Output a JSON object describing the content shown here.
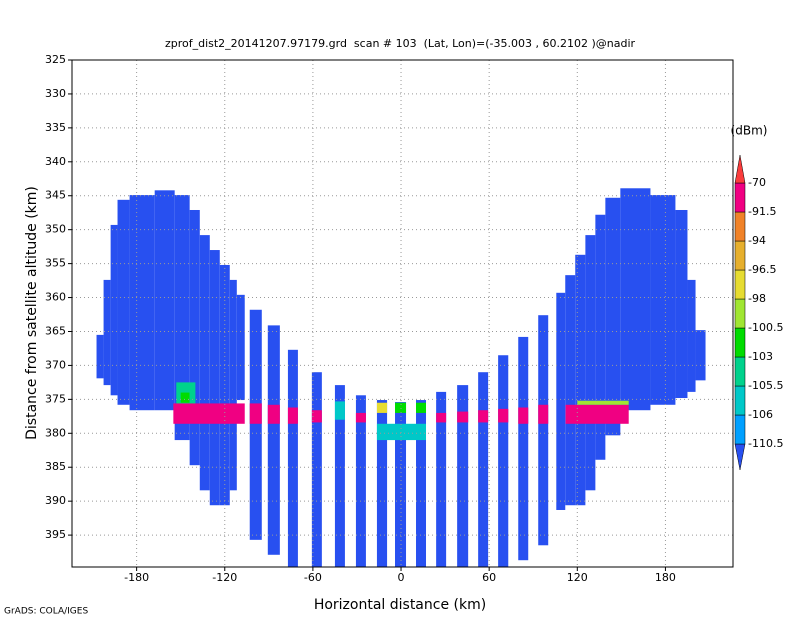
{
  "chart_data": {
    "type": "shaded",
    "title": "zprof_dist2_20141207.97179.grd  scan # 103  (Lat, Lon)=(-35.003 , 60.2102 )@nadir",
    "x_label": "Horizontal distance (km)",
    "y_label": "Distance from satellite altitude (km)",
    "footer": "GrADS: COLA/IGES",
    "xlim": [
      -224,
      226
    ],
    "ylim": [
      325,
      399.7
    ],
    "xticks": [
      -180,
      -120,
      -60,
      0,
      60,
      120,
      180
    ],
    "yticks": [
      325,
      330,
      335,
      340,
      345,
      350,
      355,
      360,
      365,
      370,
      375,
      380,
      385,
      390,
      395
    ],
    "grid": true,
    "colorbar": {
      "unit": "(dBm)",
      "levels": [
        -110.5,
        -106,
        -105.5,
        -103,
        -100.5,
        -98,
        -96.5,
        -94,
        -91.5,
        -70
      ],
      "colors": [
        "#2850f0",
        "#00a0ff",
        "#00c8c8",
        "#00d28c",
        "#00dc00",
        "#a0e632",
        "#e6dc32",
        "#e6af2d",
        "#f08228",
        "#f00082",
        "#fa3c3c"
      ]
    },
    "patches": [
      {
        "x": [
          -207.3,
          -202.5
        ],
        "alt": [
          365.5,
          371.9
        ],
        "value": -115
      },
      {
        "x": [
          -202.5,
          -197.7
        ],
        "alt": [
          357.4,
          372.9
        ],
        "value": -115
      },
      {
        "x": [
          -197.7,
          -193
        ],
        "alt": [
          349.3,
          374.4
        ],
        "value": -115
      },
      {
        "x": [
          -193,
          -184.8
        ],
        "alt": [
          345.6,
          375.8
        ],
        "value": -115
      },
      {
        "x": [
          -184.8,
          -167.7
        ],
        "alt": [
          344.9,
          376.6
        ],
        "value": -115
      },
      {
        "x": [
          -167.7,
          -154.1
        ],
        "alt": [
          344.2,
          376.6
        ],
        "value": -115
      },
      {
        "x": [
          -154.1,
          -143.9
        ],
        "alt": [
          344.9,
          381
        ],
        "value": -115
      },
      {
        "x": [
          -143.9,
          -137
        ],
        "alt": [
          347.1,
          384.7
        ],
        "value": -115
      },
      {
        "x": [
          -137,
          -130.2
        ],
        "alt": [
          350.8,
          388.4
        ],
        "value": -115
      },
      {
        "x": [
          -130.2,
          -123.4
        ],
        "alt": [
          353,
          390.6
        ],
        "value": -115
      },
      {
        "x": [
          -123.4,
          -116.6
        ],
        "alt": [
          355.2,
          390.6
        ],
        "value": -115
      },
      {
        "x": [
          -116.6,
          -111.8
        ],
        "alt": [
          357.4,
          388.4
        ],
        "value": -115
      },
      {
        "x": [
          -111.8,
          -106.4
        ],
        "alt": [
          359.6,
          375.1
        ],
        "value": -115
      },
      {
        "x": [
          -103,
          -94.8
        ],
        "alt": [
          361.8,
          395.7
        ],
        "value": -115
      },
      {
        "x": [
          -90.7,
          -82.5
        ],
        "alt": [
          364.1,
          397.9
        ],
        "value": -115
      },
      {
        "x": [
          -77,
          -70.2
        ],
        "alt": [
          367.7,
          399.7
        ],
        "value": -115
      },
      {
        "x": [
          -60.7,
          -53.9
        ],
        "alt": [
          371,
          399.7
        ],
        "value": -115
      },
      {
        "x": [
          -45,
          -38.2
        ],
        "alt": [
          372.9,
          399.7
        ],
        "value": -115
      },
      {
        "x": [
          -30.7,
          -23.9
        ],
        "alt": [
          374.4,
          399.7
        ],
        "value": -115
      },
      {
        "x": [
          -16.4,
          -9.5
        ],
        "alt": [
          375.1,
          399.7
        ],
        "value": -115
      },
      {
        "x": [
          -4.1,
          3.4
        ],
        "alt": [
          375.4,
          399.7
        ],
        "value": -115
      },
      {
        "x": [
          10.2,
          17
        ],
        "alt": [
          375.1,
          399.7
        ],
        "value": -115
      },
      {
        "x": [
          23.9,
          30.7
        ],
        "alt": [
          373.9,
          399.7
        ],
        "value": -115
      },
      {
        "x": [
          38.2,
          45.7
        ],
        "alt": [
          372.9,
          399.7
        ],
        "value": -115
      },
      {
        "x": [
          52.5,
          59.3
        ],
        "alt": [
          371,
          399.7
        ],
        "value": -115
      },
      {
        "x": [
          66.1,
          73
        ],
        "alt": [
          368.5,
          399.7
        ],
        "value": -115
      },
      {
        "x": [
          79.8,
          86.6
        ],
        "alt": [
          365.8,
          398.7
        ],
        "value": -115
      },
      {
        "x": [
          93.4,
          100.2
        ],
        "alt": [
          362.6,
          396.5
        ],
        "value": -115
      },
      {
        "x": [
          105.7,
          111.8
        ],
        "alt": [
          359.3,
          391.3
        ],
        "value": -115
      },
      {
        "x": [
          111.8,
          118.6
        ],
        "alt": [
          356.7,
          390.6
        ],
        "value": -115
      },
      {
        "x": [
          118.6,
          125.5
        ],
        "alt": [
          353.7,
          390.6
        ],
        "value": -115
      },
      {
        "x": [
          125.5,
          132.3
        ],
        "alt": [
          350.8,
          388.4
        ],
        "value": -115
      },
      {
        "x": [
          132.3,
          139.1
        ],
        "alt": [
          347.8,
          383.9
        ],
        "value": -115
      },
      {
        "x": [
          139.1,
          149.3
        ],
        "alt": [
          345.3,
          380.3
        ],
        "value": -115
      },
      {
        "x": [
          149.3,
          169.8
        ],
        "alt": [
          343.9,
          376.6
        ],
        "value": -115
      },
      {
        "x": [
          169.8,
          186.8
        ],
        "alt": [
          344.9,
          375.8
        ],
        "value": -115
      },
      {
        "x": [
          186.8,
          195
        ],
        "alt": [
          347.1,
          374.8
        ],
        "value": -115
      },
      {
        "x": [
          195,
          200.5
        ],
        "alt": [
          357.4,
          373.9
        ],
        "value": -115
      },
      {
        "x": [
          200.5,
          207.3
        ],
        "alt": [
          364.8,
          372.2
        ],
        "value": -115
      },
      {
        "x": [
          -153,
          -140
        ],
        "alt": [
          372.5,
          375.8
        ],
        "value": -104
      },
      {
        "x": [
          -150,
          -144
        ],
        "alt": [
          374,
          375.5
        ],
        "value": -102
      },
      {
        "x": [
          -155,
          -106.4
        ],
        "alt": [
          375.6,
          378.6
        ],
        "value": -80
      },
      {
        "x": [
          -103,
          -94.8
        ],
        "alt": [
          375.6,
          378.6
        ],
        "value": -80
      },
      {
        "x": [
          -90.7,
          -82.5
        ],
        "alt": [
          375.8,
          378.6
        ],
        "value": -80
      },
      {
        "x": [
          -77,
          -70.2
        ],
        "alt": [
          376.2,
          378.6
        ],
        "value": -80
      },
      {
        "x": [
          -60.7,
          -53.9
        ],
        "alt": [
          376.6,
          378.4
        ],
        "value": -80
      },
      {
        "x": [
          -45,
          -38.2
        ],
        "alt": [
          375.3,
          378
        ],
        "value": -105.8
      },
      {
        "x": [
          -30.7,
          -23.9
        ],
        "alt": [
          377,
          378.4
        ],
        "value": -80
      },
      {
        "x": [
          -16.4,
          -9.5
        ],
        "alt": [
          375.5,
          377
        ],
        "value": -97
      },
      {
        "x": [
          -4.1,
          3.4
        ],
        "alt": [
          375.5,
          377
        ],
        "value": -102
      },
      {
        "x": [
          10.2,
          17
        ],
        "alt": [
          375.5,
          377
        ],
        "value": -102
      },
      {
        "x": [
          -16.4,
          17
        ],
        "alt": [
          378.6,
          381
        ],
        "value": -105.8
      },
      {
        "x": [
          23.9,
          30.7
        ],
        "alt": [
          377,
          378.4
        ],
        "value": -80
      },
      {
        "x": [
          38.2,
          45.7
        ],
        "alt": [
          376.8,
          378.4
        ],
        "value": -80
      },
      {
        "x": [
          52.5,
          59.3
        ],
        "alt": [
          376.6,
          378.4
        ],
        "value": -80
      },
      {
        "x": [
          66.1,
          73
        ],
        "alt": [
          376.4,
          378.4
        ],
        "value": -80
      },
      {
        "x": [
          79.8,
          86.6
        ],
        "alt": [
          376.2,
          378.6
        ],
        "value": -80
      },
      {
        "x": [
          93.4,
          100.2
        ],
        "alt": [
          375.8,
          378.6
        ],
        "value": -80
      },
      {
        "x": [
          112,
          155
        ],
        "alt": [
          375.8,
          378.6
        ],
        "value": -80
      },
      {
        "x": [
          120,
          155
        ],
        "alt": [
          375.2,
          375.8
        ],
        "value": -99
      }
    ]
  }
}
